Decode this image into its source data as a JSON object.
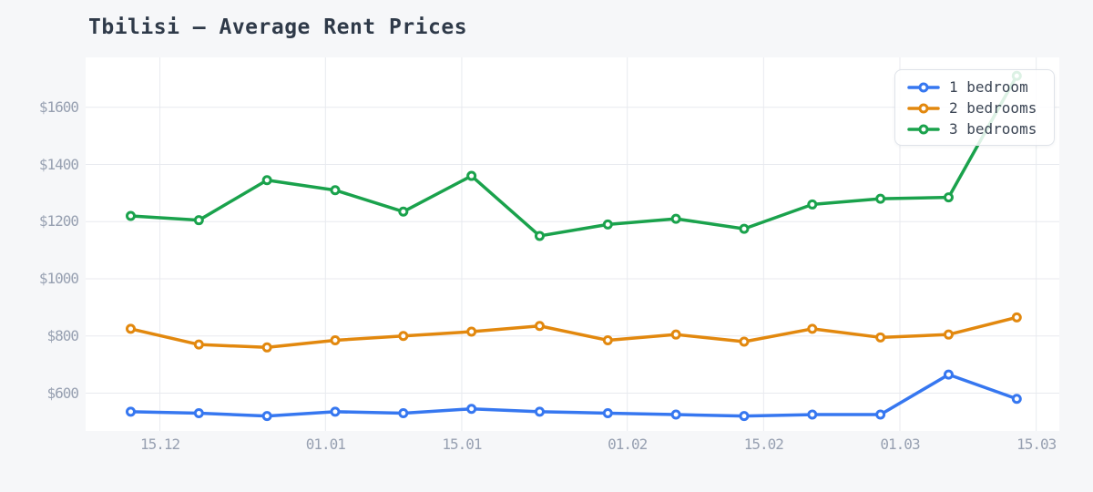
{
  "chart_data": {
    "type": "line",
    "title": "Tbilisi — Average Rent Prices",
    "xlabel": "",
    "ylabel": "",
    "grid": true,
    "legend_position": "top-right",
    "ylim": [
      468,
      1775
    ],
    "x": [
      "12.12",
      "19.12",
      "26.12",
      "02.01",
      "09.01",
      "16.01",
      "23.01",
      "30.01",
      "06.02",
      "13.02",
      "20.02",
      "27.02",
      "06.03",
      "13.03"
    ],
    "x_day_offsets": [
      0,
      7,
      14,
      21,
      28,
      35,
      42,
      49,
      56,
      63,
      70,
      77,
      84,
      91
    ],
    "series": [
      {
        "name": "1 bedroom",
        "color": "#3677f0",
        "values": [
          535,
          530,
          520,
          535,
          530,
          545,
          535,
          530,
          525,
          520,
          525,
          525,
          665,
          580
        ]
      },
      {
        "name": "2 bedrooms",
        "color": "#e2880e",
        "values": [
          825,
          770,
          760,
          785,
          800,
          815,
          835,
          785,
          805,
          780,
          825,
          795,
          805,
          865
        ]
      },
      {
        "name": "3 bedrooms",
        "color": "#1aa24c",
        "values": [
          1220,
          1205,
          1345,
          1310,
          1235,
          1360,
          1150,
          1190,
          1210,
          1175,
          1260,
          1280,
          1285,
          1710
        ]
      }
    ],
    "y_ticks": {
      "values": [
        600,
        800,
        1000,
        1200,
        1400,
        1600
      ],
      "labels": [
        "$600",
        "$800",
        "$1000",
        "$1200",
        "$1400",
        "$1600"
      ]
    },
    "x_ticks": {
      "labels": [
        "15.12",
        "01.01",
        "15.01",
        "01.02",
        "15.02",
        "01.03",
        "15.03"
      ],
      "day_offsets": [
        3,
        20,
        34,
        51,
        65,
        79,
        93
      ]
    },
    "colors": {
      "page_bg": "#f6f7f9",
      "plot_bg": "#ffffff",
      "grid": "#e8eaef",
      "tick_text": "#97a0b1",
      "title_text": "#2f3a49",
      "legend_text": "#3b4554",
      "legend_border": "#dfe3e9"
    }
  }
}
